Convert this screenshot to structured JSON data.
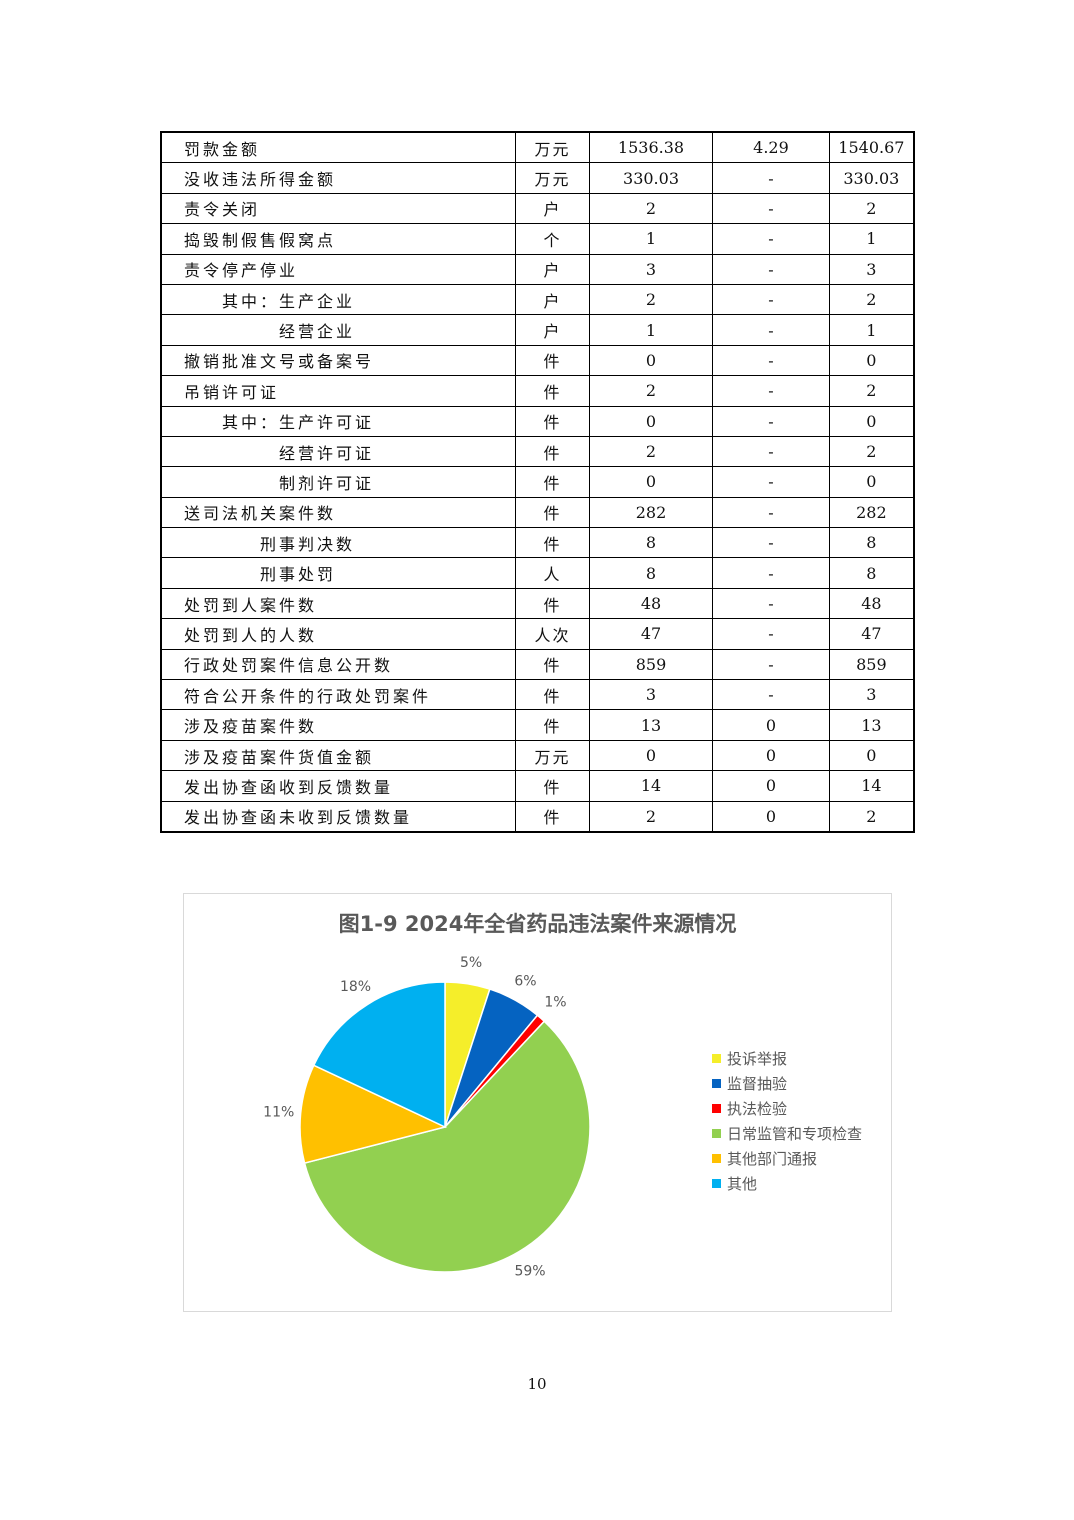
{
  "table": {
    "rows": [
      {
        "name": "罚款金额",
        "level": 0,
        "unit": "万元",
        "v1": "1536.38",
        "v2": "4.29",
        "v3": "1540.67"
      },
      {
        "name": "没收违法所得金额",
        "level": 0,
        "unit": "万元",
        "v1": "330.03",
        "v2": "-",
        "v3": "330.03"
      },
      {
        "name": "责令关闭",
        "level": 0,
        "unit": "户",
        "v1": "2",
        "v2": "-",
        "v3": "2"
      },
      {
        "name": "捣毁制假售假窝点",
        "level": 0,
        "unit": "个",
        "v1": "1",
        "v2": "-",
        "v3": "1"
      },
      {
        "name": "责令停产停业",
        "level": 0,
        "unit": "户",
        "v1": "3",
        "v2": "-",
        "v3": "3"
      },
      {
        "name": "其中：生产企业",
        "level": 1,
        "unit": "户",
        "v1": "2",
        "v2": "-",
        "v3": "2"
      },
      {
        "name": "经营企业",
        "level": 2,
        "unit": "户",
        "v1": "1",
        "v2": "-",
        "v3": "1"
      },
      {
        "name": "撤销批准文号或备案号",
        "level": 0,
        "unit": "件",
        "v1": "0",
        "v2": "-",
        "v3": "0"
      },
      {
        "name": "吊销许可证",
        "level": 0,
        "unit": "件",
        "v1": "2",
        "v2": "-",
        "v3": "2"
      },
      {
        "name": "其中：生产许可证",
        "level": 1,
        "unit": "件",
        "v1": "0",
        "v2": "-",
        "v3": "0"
      },
      {
        "name": "经营许可证",
        "level": 2,
        "unit": "件",
        "v1": "2",
        "v2": "-",
        "v3": "2"
      },
      {
        "name": "制剂许可证",
        "level": 2,
        "unit": "件",
        "v1": "0",
        "v2": "-",
        "v3": "0"
      },
      {
        "name": "送司法机关案件数",
        "level": 0,
        "unit": "件",
        "v1": "282",
        "v2": "-",
        "v3": "282"
      },
      {
        "name": "刑事判决数",
        "level": 3,
        "unit": "件",
        "v1": "8",
        "v2": "-",
        "v3": "8"
      },
      {
        "name": "刑事处罚",
        "level": 3,
        "unit": "人",
        "v1": "8",
        "v2": "-",
        "v3": "8"
      },
      {
        "name": "处罚到人案件数",
        "level": 0,
        "unit": "件",
        "v1": "48",
        "v2": "-",
        "v3": "48"
      },
      {
        "name": "处罚到人的人数",
        "level": 0,
        "unit": "人次",
        "v1": "47",
        "v2": "-",
        "v3": "47"
      },
      {
        "name": "行政处罚案件信息公开数",
        "level": 0,
        "unit": "件",
        "v1": "859",
        "v2": "-",
        "v3": "859"
      },
      {
        "name": "符合公开条件的行政处罚案件",
        "level": 0,
        "unit": "件",
        "v1": "3",
        "v2": "-",
        "v3": "3"
      },
      {
        "name": "涉及疫苗案件数",
        "level": 0,
        "unit": "件",
        "v1": "13",
        "v2": "0",
        "v3": "13"
      },
      {
        "name": "涉及疫苗案件货值金额",
        "level": 0,
        "unit": "万元",
        "v1": "0",
        "v2": "0",
        "v3": "0"
      },
      {
        "name": "发出协查函收到反馈数量",
        "level": 0,
        "unit": "件",
        "v1": "14",
        "v2": "0",
        "v3": "14"
      },
      {
        "name": "发出协查函未收到反馈数量",
        "level": 0,
        "unit": "件",
        "v1": "2",
        "v2": "0",
        "v3": "2"
      }
    ]
  },
  "chart_data": {
    "type": "pie",
    "title": "图1-9  2024年全省药品违法案件来源情况",
    "legend_position": "right",
    "start": "12 o'clock, clockwise",
    "slices": [
      {
        "label": "投诉举报",
        "value": 5,
        "display": "5%",
        "color": "#F5EE2A"
      },
      {
        "label": "监督抽验",
        "value": 6,
        "display": "6%",
        "color": "#0563C1"
      },
      {
        "label": "执法检验",
        "value": 1,
        "display": "1%",
        "color": "#FF0000"
      },
      {
        "label": "日常监管和专项检查",
        "value": 59,
        "display": "59%",
        "color": "#92D050"
      },
      {
        "label": "其他部门通报",
        "value": 11,
        "display": "11%",
        "color": "#FFC000"
      },
      {
        "label": "其他",
        "value": 18,
        "display": "18%",
        "color": "#00B0F0"
      }
    ]
  },
  "page_number": "10"
}
